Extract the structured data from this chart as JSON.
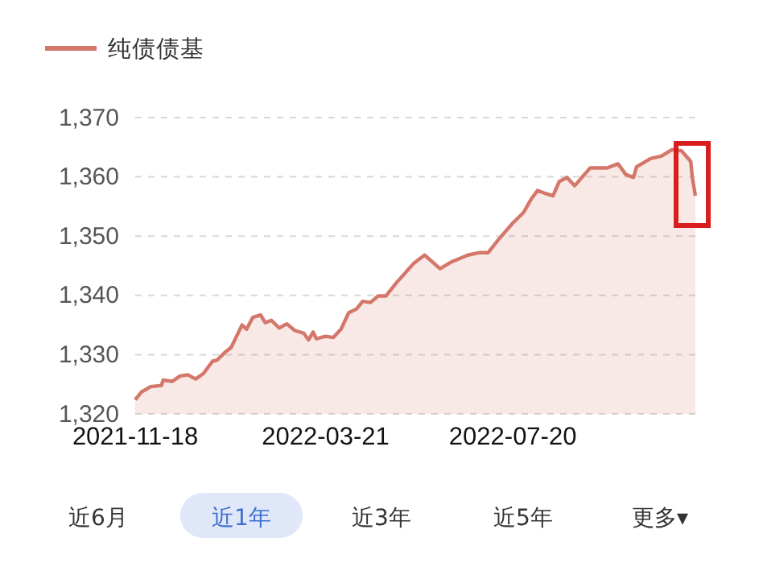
{
  "chart_data": {
    "type": "area",
    "legend": "top left",
    "grid": "y",
    "line_style": "solid",
    "x": [
      "2021-11-18",
      "2021-11-22",
      "2021-11-28",
      "2021-12-05",
      "2021-12-06",
      "2021-12-12",
      "2021-12-17",
      "2021-12-22",
      "2021-12-27",
      "2022-01-01",
      "2022-01-07",
      "2022-01-10",
      "2022-01-15",
      "2022-01-19",
      "2022-01-26",
      "2022-01-29",
      "2022-02-02",
      "2022-02-07",
      "2022-02-10",
      "2022-02-14",
      "2022-02-19",
      "2022-02-24",
      "2022-03-01",
      "2022-03-07",
      "2022-03-10",
      "2022-03-13",
      "2022-03-15",
      "2022-03-21",
      "2022-03-26",
      "2022-03-31",
      "2022-04-05",
      "2022-04-10",
      "2022-04-14",
      "2022-04-19",
      "2022-04-24",
      "2022-04-29",
      "2022-05-06",
      "2022-05-17",
      "2022-05-24",
      "2022-06-03",
      "2022-06-10",
      "2022-06-21",
      "2022-06-28",
      "2022-07-04",
      "2022-07-11",
      "2022-07-20",
      "2022-07-27",
      "2022-08-01",
      "2022-08-05",
      "2022-08-10",
      "2022-08-15",
      "2022-08-19",
      "2022-08-24",
      "2022-08-29",
      "2022-09-08",
      "2022-09-19",
      "2022-09-26",
      "2022-10-01",
      "2022-10-06",
      "2022-10-08",
      "2022-10-17",
      "2022-10-24",
      "2022-10-31",
      "2022-11-06",
      "2022-11-12",
      "2022-11-13",
      "2022-11-15"
    ],
    "series": [
      {
        "name": "纯债债基",
        "color": "#d4776a",
        "values": [
          1322.4,
          1323.7,
          1324.6,
          1324.8,
          1325.7,
          1325.5,
          1326.4,
          1326.6,
          1325.9,
          1326.8,
          1328.9,
          1329.1,
          1330.4,
          1331.2,
          1335.0,
          1334.3,
          1336.3,
          1336.7,
          1335.4,
          1335.8,
          1334.5,
          1335.2,
          1334.1,
          1333.6,
          1332.5,
          1333.8,
          1332.7,
          1333.1,
          1332.9,
          1334.3,
          1337.1,
          1337.7,
          1339.0,
          1338.8,
          1339.9,
          1339.9,
          1342.2,
          1345.4,
          1346.8,
          1344.5,
          1345.6,
          1346.8,
          1347.2,
          1347.2,
          1349.5,
          1352.2,
          1354.0,
          1356.3,
          1357.7,
          1357.2,
          1356.8,
          1359.2,
          1359.9,
          1358.5,
          1361.5,
          1361.5,
          1362.2,
          1360.4,
          1359.9,
          1361.7,
          1363.1,
          1363.5,
          1364.6,
          1364.4,
          1362.6,
          1359.9,
          1356.8
        ]
      }
    ],
    "xlim": [
      "2021-11-18",
      "2022-11-15"
    ],
    "xticks": [
      {
        "value": "2021-11-18",
        "label": "2021-11-18"
      },
      {
        "value": "2022-03-21",
        "label": "2022-03-21"
      },
      {
        "value": "2022-07-20",
        "label": "2022-07-20"
      }
    ],
    "ylim": [
      1320,
      1370
    ],
    "yticks": [
      {
        "value": 1320,
        "label": "1,320"
      },
      {
        "value": 1330,
        "label": "1,330"
      },
      {
        "value": 1340,
        "label": "1,340"
      },
      {
        "value": 1350,
        "label": "1,350"
      },
      {
        "value": 1360,
        "label": "1,360"
      },
      {
        "value": 1370,
        "label": "1,370"
      }
    ],
    "annotations": [
      "近6月",
      "近1年",
      "近3年",
      "近5年",
      "更多▾"
    ]
  }
}
